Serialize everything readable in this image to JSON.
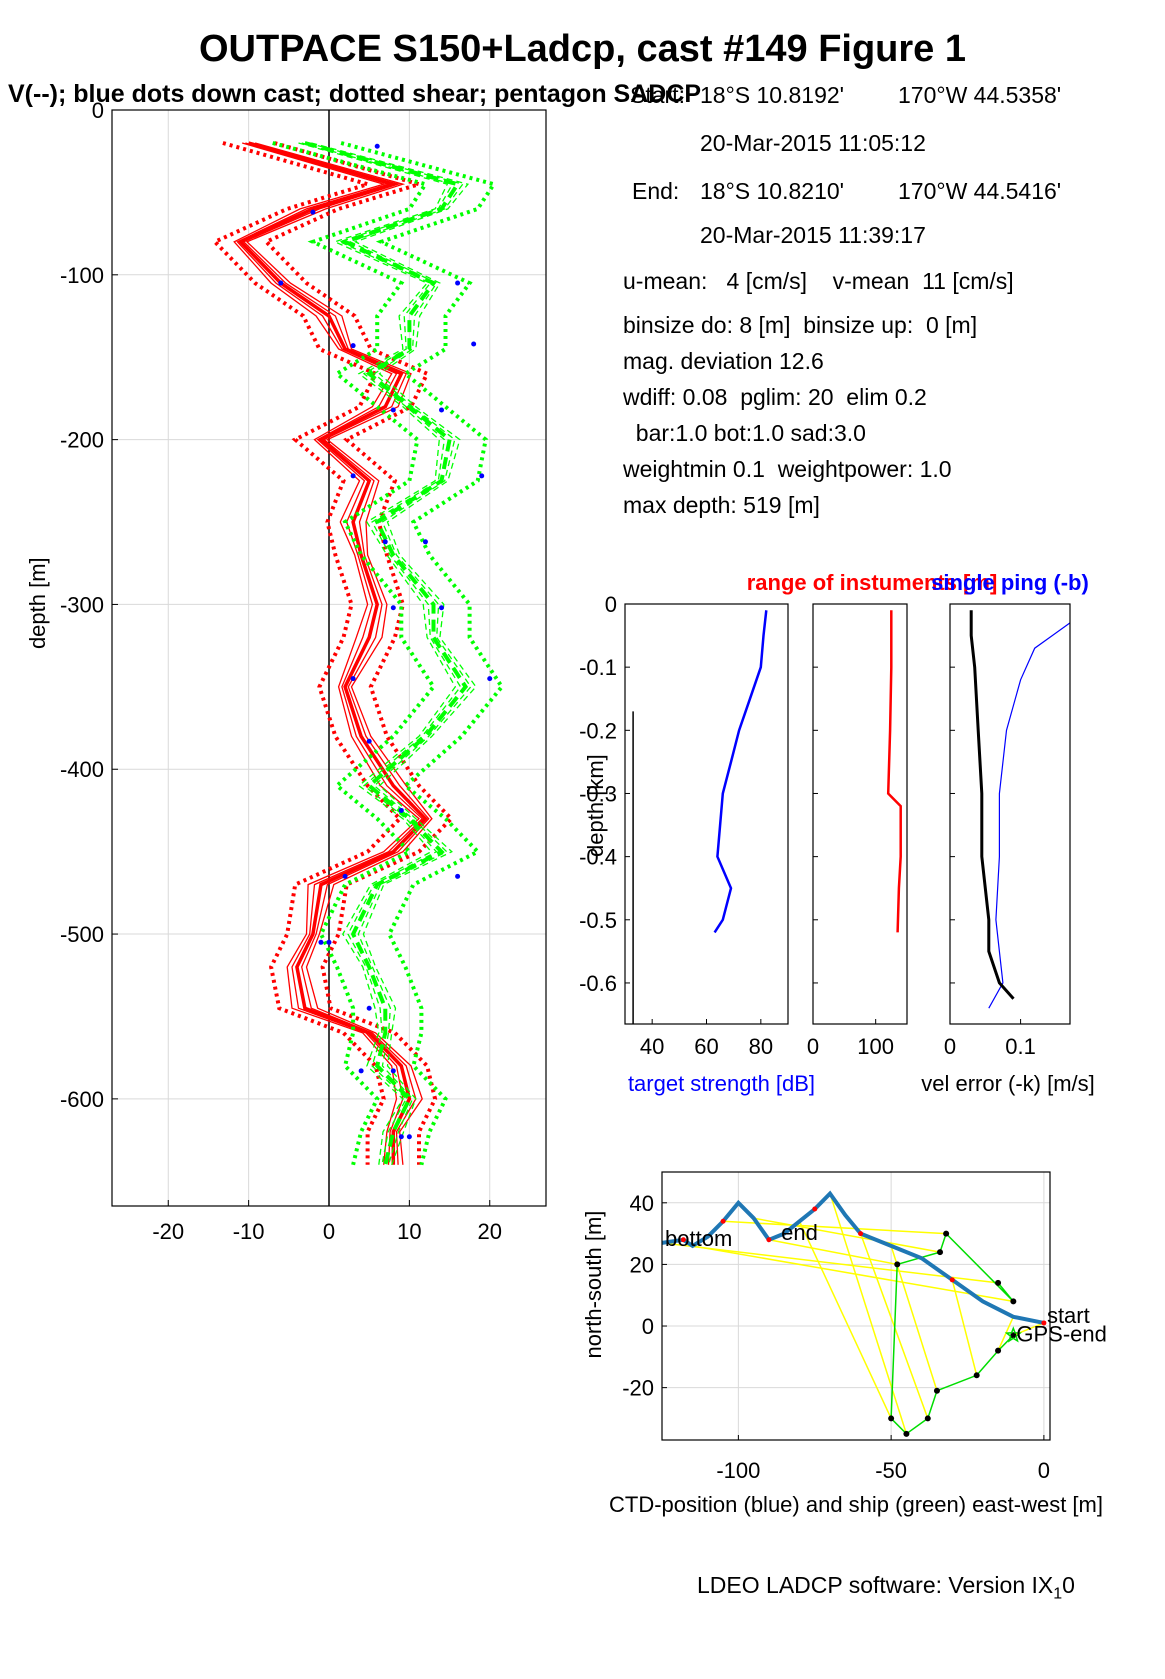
{
  "header": {
    "title": "OUTPACE S150+Ladcp, cast #149  Figure 1",
    "subtitle": "V(--); blue dots down cast; dotted shear; pentagon SADCP"
  },
  "info": {
    "start_label": "Start:",
    "start_lat": "18°S 10.8192'",
    "start_lon": "170°W 44.5358'",
    "start_time": "20-Mar-2015 11:05:12",
    "end_label": "End:",
    "end_lat": "18°S 10.8210'",
    "end_lon": "170°W 44.5416'",
    "end_time": "20-Mar-2015 11:39:17",
    "umean": "u-mean:   4 [cm/s]    v-mean  11 [cm/s]",
    "binsize": "binsize do: 8 [m]  binsize up:  0 [m]",
    "magdev": "mag. deviation 12.6",
    "wdiff": "wdiff: 0.08  pglim: 20  elim 0.2",
    "bar": "  bar:1.0 bot:1.0 sad:3.0",
    "weight": "weightmin 0.1  weightpower: 1.0",
    "maxdepth": "max depth: 519 [m]"
  },
  "footer": {
    "text": "LDEO LADCP software: Version IX",
    "sub": "1",
    "tail": "0"
  },
  "colors": {
    "u": "#ff0000",
    "v": "#00ff00",
    "dots": "#0000ff",
    "ctd": "#1f77b4",
    "ship": "#00dd00",
    "ship_fix": "#ffff00"
  },
  "chart_data": [
    {
      "type": "line",
      "name": "velocity-profiles",
      "ylabel": "depth [m]",
      "xlim": [
        -27,
        27
      ],
      "ylim": [
        -665,
        0
      ],
      "xticks": [
        -20,
        -10,
        0,
        10,
        20
      ],
      "yticks": [
        0,
        -100,
        -200,
        -300,
        -400,
        -500,
        -600
      ],
      "grid": true,
      "depth": [
        -20,
        -45,
        -60,
        -80,
        -105,
        -125,
        -145,
        -160,
        -180,
        -200,
        -225,
        -250,
        -270,
        -300,
        -320,
        -350,
        -380,
        -410,
        -430,
        -450,
        -470,
        -500,
        -520,
        -545,
        -560,
        -580,
        -600,
        -620,
        -640
      ],
      "u_profile": [
        -10,
        8,
        -2,
        -11,
        -6,
        0,
        2,
        9,
        7,
        -1,
        5,
        3,
        4,
        6,
        5,
        2,
        4,
        8,
        12,
        8,
        -1,
        -2,
        -4,
        -3,
        5,
        9,
        10,
        8,
        8
      ],
      "v_profile": [
        -3,
        16,
        14,
        2,
        13,
        10,
        10,
        5,
        10,
        15,
        14,
        6,
        8,
        13,
        13,
        17,
        12,
        5,
        10,
        14,
        6,
        3,
        5,
        7,
        7,
        6,
        10,
        8,
        7
      ],
      "blue_dots_u": [
        [
          -2,
          -62
        ],
        [
          -6,
          -105
        ],
        [
          3,
          -143
        ],
        [
          8,
          -182
        ],
        [
          3,
          -222
        ],
        [
          7,
          -262
        ],
        [
          8,
          -302
        ],
        [
          3,
          -345
        ],
        [
          5,
          -383
        ],
        [
          9,
          -425
        ],
        [
          2,
          -465
        ],
        [
          -1,
          -505
        ],
        [
          5,
          -545
        ],
        [
          8,
          -583
        ],
        [
          10,
          -623
        ]
      ],
      "blue_dots_v": [
        [
          6,
          -22
        ],
        [
          16,
          -105
        ],
        [
          18,
          -142
        ],
        [
          14,
          -182
        ],
        [
          19,
          -222
        ],
        [
          12,
          -262
        ],
        [
          14,
          -302
        ],
        [
          20,
          -345
        ],
        [
          16,
          -465
        ],
        [
          0,
          -505
        ],
        [
          4,
          -583
        ],
        [
          9,
          -623
        ]
      ]
    },
    {
      "type": "line",
      "name": "target-strength",
      "ylabel": "depth [km]",
      "xlabel": "target strength [dB]",
      "xlim": [
        30,
        90
      ],
      "ylim": [
        -0.665,
        0
      ],
      "xticks": [
        40,
        60,
        80
      ],
      "yticks": [
        0,
        -0.1,
        -0.2,
        -0.3,
        -0.4,
        -0.5,
        -0.6
      ],
      "ts_depth": [
        -0.01,
        -0.05,
        -0.1,
        -0.15,
        -0.2,
        -0.25,
        -0.3,
        -0.35,
        -0.4,
        -0.45,
        -0.5,
        -0.52
      ],
      "ts_values": [
        82,
        81,
        80,
        76,
        72,
        69,
        66,
        65,
        64,
        69,
        66,
        63
      ],
      "range_depth": [
        -0.17,
        -0.3,
        -0.45,
        -0.6,
        -0.665
      ],
      "range_values": [
        33,
        33,
        33,
        33,
        33
      ]
    },
    {
      "type": "line",
      "name": "instrument-range",
      "title": "range of instuments [m]",
      "xlim": [
        0,
        150
      ],
      "xticks": [
        0,
        100
      ],
      "depth": [
        -0.01,
        -0.1,
        -0.2,
        -0.3,
        -0.32,
        -0.4,
        -0.45,
        -0.52
      ],
      "values": [
        125,
        125,
        123,
        120,
        140,
        140,
        137,
        135
      ]
    },
    {
      "type": "line",
      "name": "vel-error",
      "title": "single ping (-b)",
      "xlabel": "vel error (-k) [m/s]",
      "xlim": [
        0,
        0.17
      ],
      "xticks": [
        0,
        0.1
      ],
      "depth": [
        -0.01,
        -0.05,
        -0.1,
        -0.2,
        -0.3,
        -0.4,
        -0.5,
        -0.55,
        -0.6,
        -0.625
      ],
      "black_values": [
        0.03,
        0.03,
        0.035,
        0.04,
        0.045,
        0.045,
        0.055,
        0.055,
        0.07,
        0.09
      ],
      "blue_depth": [
        -0.03,
        -0.07,
        -0.12,
        -0.2,
        -0.3,
        -0.4,
        -0.5,
        -0.55,
        -0.6,
        -0.64
      ],
      "blue_values": [
        0.17,
        0.12,
        0.1,
        0.08,
        0.07,
        0.07,
        0.065,
        0.07,
        0.075,
        0.055
      ]
    },
    {
      "type": "line",
      "name": "position",
      "xlabel": "CTD-position (blue) and ship (green) east-west [m]",
      "ylabel": "north-south [m]",
      "xlim": [
        -125,
        2
      ],
      "ylim": [
        -37,
        50
      ],
      "xticks": [
        -100,
        -50,
        0
      ],
      "yticks": [
        40,
        20,
        0,
        -20
      ],
      "grid": true,
      "ctd_x": [
        0,
        -10,
        -20,
        -30,
        -40,
        -50,
        -60,
        -65,
        -70,
        -75,
        -80,
        -85,
        -90,
        -95,
        -100,
        -105,
        -110,
        -115,
        -118,
        -125
      ],
      "ctd_y": [
        1,
        3,
        8,
        15,
        22,
        26,
        30,
        36,
        43,
        38,
        34,
        30,
        28,
        35,
        40,
        34,
        29,
        26,
        28,
        27
      ],
      "ship_x": [
        -10,
        -15,
        -22,
        -35,
        -38,
        -45,
        -50,
        -48,
        -34,
        -32,
        -10,
        -15
      ],
      "ship_y": [
        -3,
        -8,
        -16,
        -21,
        -30,
        -35,
        -30,
        20,
        24,
        30,
        8,
        14
      ],
      "labels": {
        "start": "start",
        "end": "end",
        "bottom": "bottom",
        "gps_end": "GPS-end"
      }
    }
  ]
}
